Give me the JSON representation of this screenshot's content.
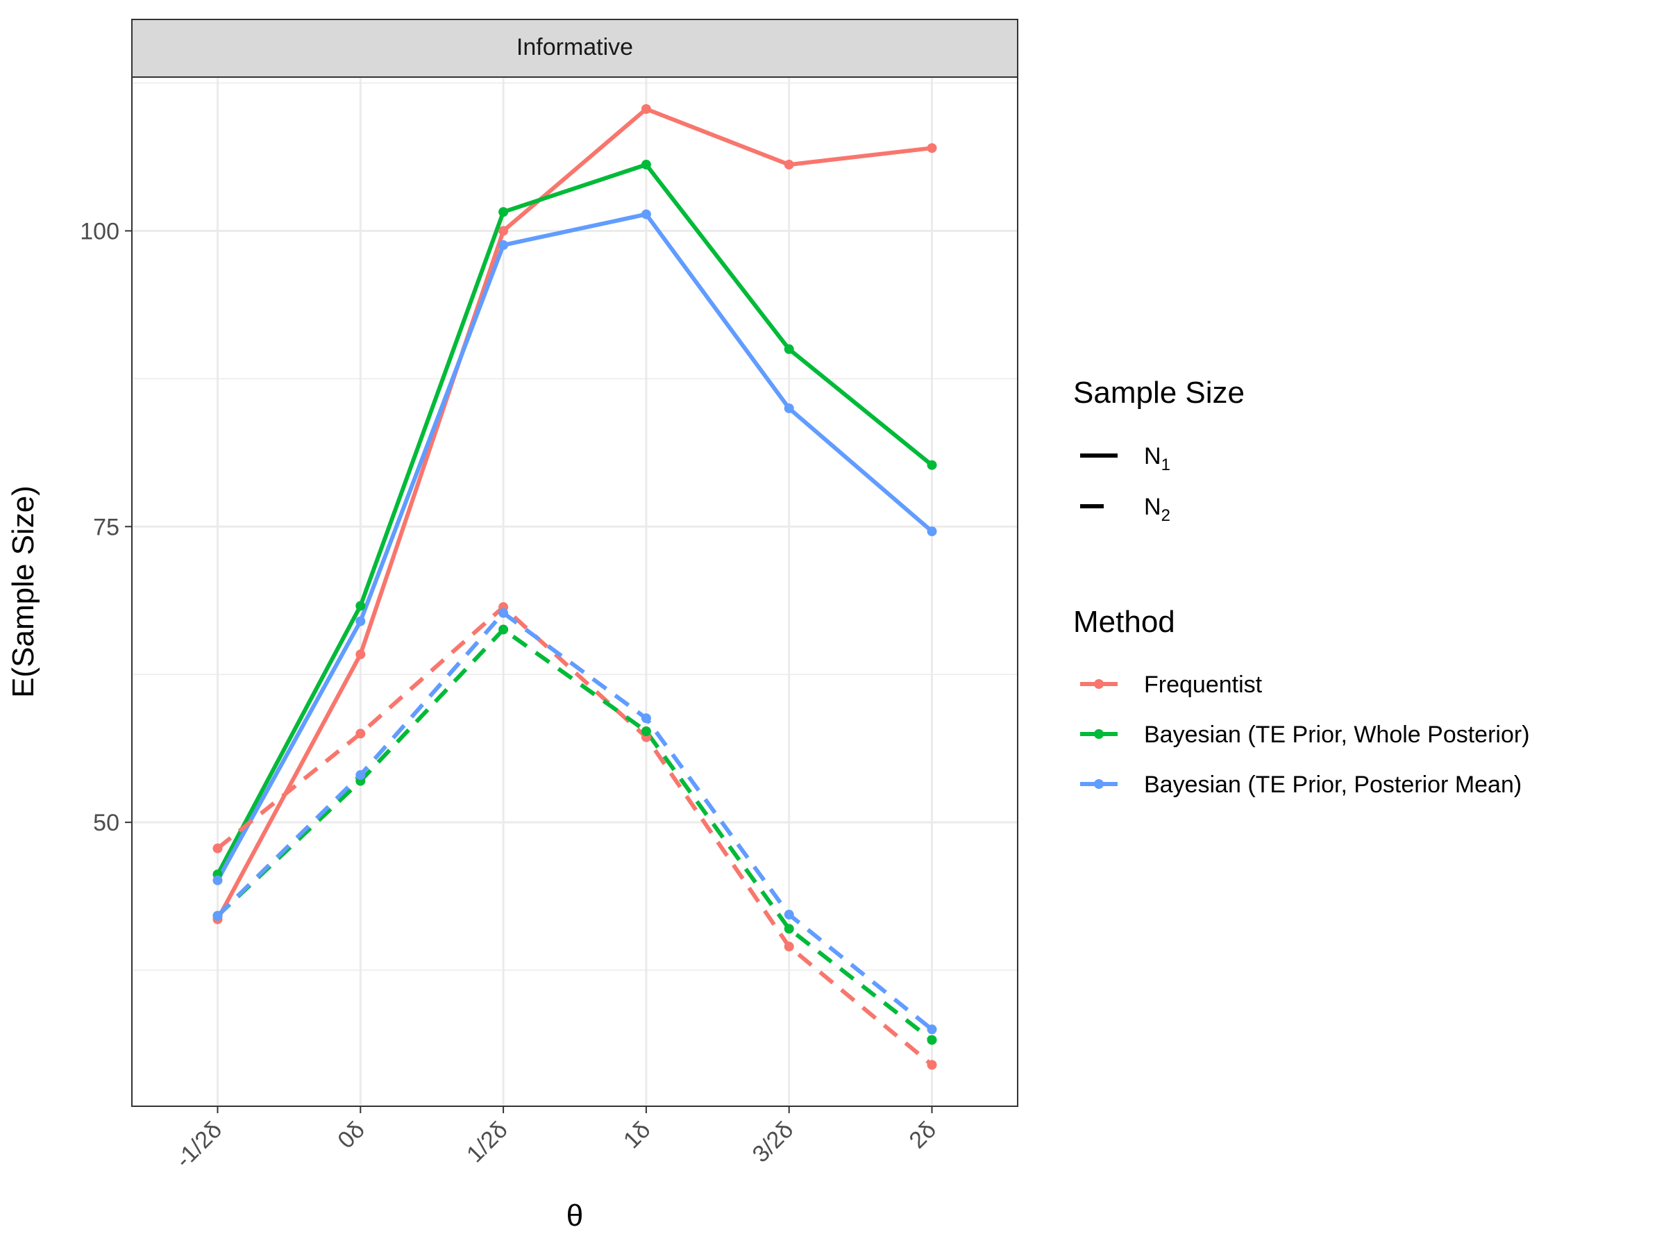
{
  "chart_data": {
    "type": "line",
    "facet_label": "Informative",
    "xlabel": "θ",
    "ylabel": "E(Sample Size)",
    "categories": [
      "-1/2δ",
      "0δ",
      "1/2δ",
      "1δ",
      "3/2δ",
      "2δ"
    ],
    "yticks": [
      50,
      75,
      100
    ],
    "ylim": [
      26,
      113
    ],
    "grid": true,
    "legend_position": "right",
    "legend_sample_size": {
      "title": "Sample Size",
      "items": [
        {
          "label": "N",
          "sub": "1",
          "linetype": "solid"
        },
        {
          "label": "N",
          "sub": "2",
          "linetype": "dashed"
        }
      ]
    },
    "legend_method": {
      "title": "Method",
      "items": [
        {
          "label": "Frequentist",
          "color": "#F8766D"
        },
        {
          "label": "Bayesian (TE Prior, Whole Posterior)",
          "color": "#00BA38"
        },
        {
          "label": "Bayesian (TE Prior, Posterior Mean)",
          "color": "#619CFF"
        }
      ]
    },
    "series": [
      {
        "method": "Frequentist",
        "size": "N1",
        "color": "#F8766D",
        "linetype": "solid",
        "values": [
          41.8,
          64.2,
          100.0,
          110.3,
          105.6,
          107.0
        ]
      },
      {
        "method": "Bayesian (TE Prior, Whole Posterior)",
        "size": "N1",
        "color": "#00BA38",
        "linetype": "solid",
        "values": [
          45.6,
          68.3,
          101.6,
          105.6,
          90.0,
          80.2
        ]
      },
      {
        "method": "Bayesian (TE Prior, Posterior Mean)",
        "size": "N1",
        "color": "#619CFF",
        "linetype": "solid",
        "values": [
          45.1,
          67.0,
          98.8,
          101.4,
          85.0,
          74.6
        ]
      },
      {
        "method": "Frequentist",
        "size": "N2",
        "color": "#F8766D",
        "linetype": "dashed",
        "values": [
          47.8,
          57.5,
          68.2,
          57.2,
          39.5,
          29.5
        ]
      },
      {
        "method": "Bayesian (TE Prior, Whole Posterior)",
        "size": "N2",
        "color": "#00BA38",
        "linetype": "dashed",
        "values": [
          42.1,
          53.5,
          66.3,
          57.7,
          41.0,
          31.6
        ]
      },
      {
        "method": "Bayesian (TE Prior, Posterior Mean)",
        "size": "N2",
        "color": "#619CFF",
        "linetype": "dashed",
        "values": [
          42.1,
          54.0,
          67.7,
          58.8,
          42.2,
          32.5
        ]
      }
    ]
  }
}
